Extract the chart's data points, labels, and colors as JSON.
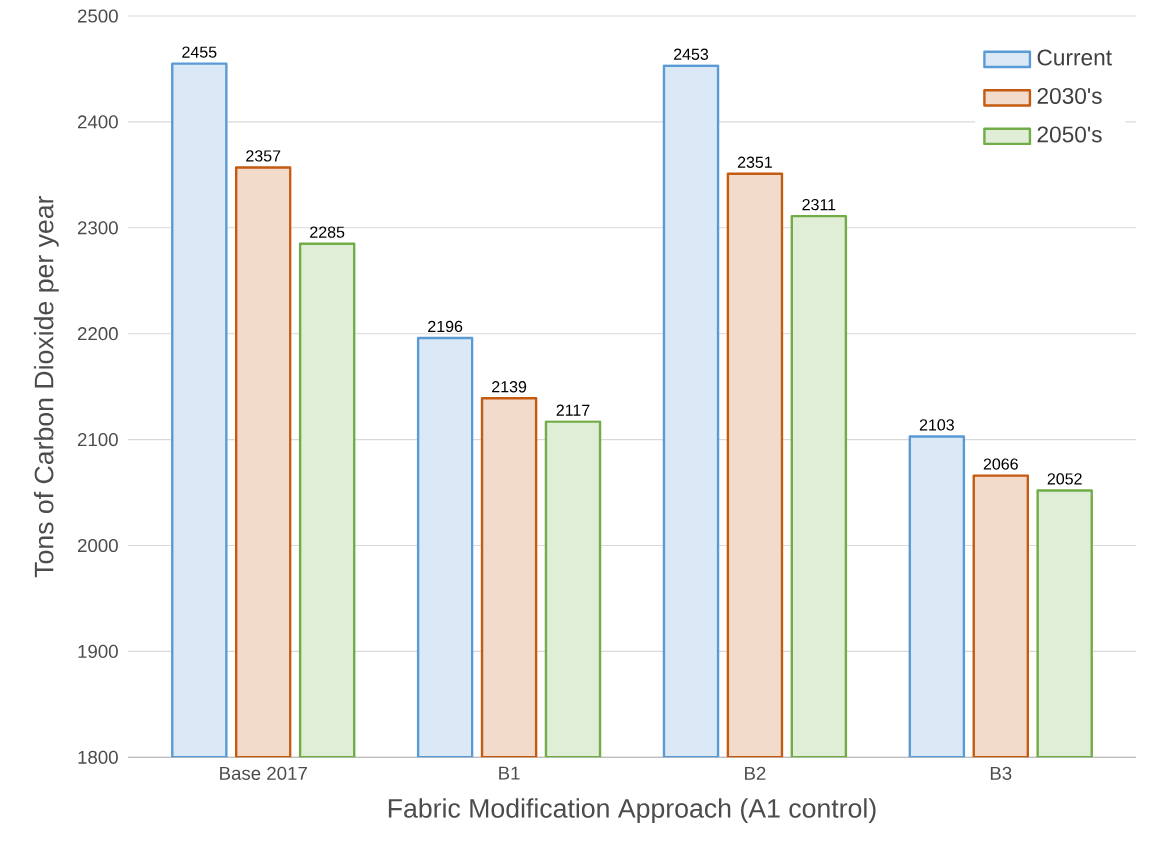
{
  "chart_data": {
    "type": "bar",
    "xlabel": "Fabric Modification Approach (A1 control)",
    "ylabel": "Tons of Carbon Dioxide per year",
    "categories": [
      "Base 2017",
      "B1",
      "B2",
      "B3"
    ],
    "series": [
      {
        "name": "Current",
        "color": "#5b9bd5",
        "values": [
          2455,
          2196,
          2453,
          2103
        ]
      },
      {
        "name": "2030's",
        "color": "#c55a11",
        "values": [
          2357,
          2139,
          2351,
          2066
        ]
      },
      {
        "name": "2050's",
        "color": "#70ad47",
        "values": [
          2285,
          2117,
          2311,
          2052
        ]
      }
    ],
    "ylim": [
      1800,
      2500
    ],
    "yticks": [
      1800,
      1900,
      2000,
      2100,
      2200,
      2300,
      2400,
      2500
    ],
    "grid": "y",
    "legend": "top right",
    "data_labels": true
  }
}
